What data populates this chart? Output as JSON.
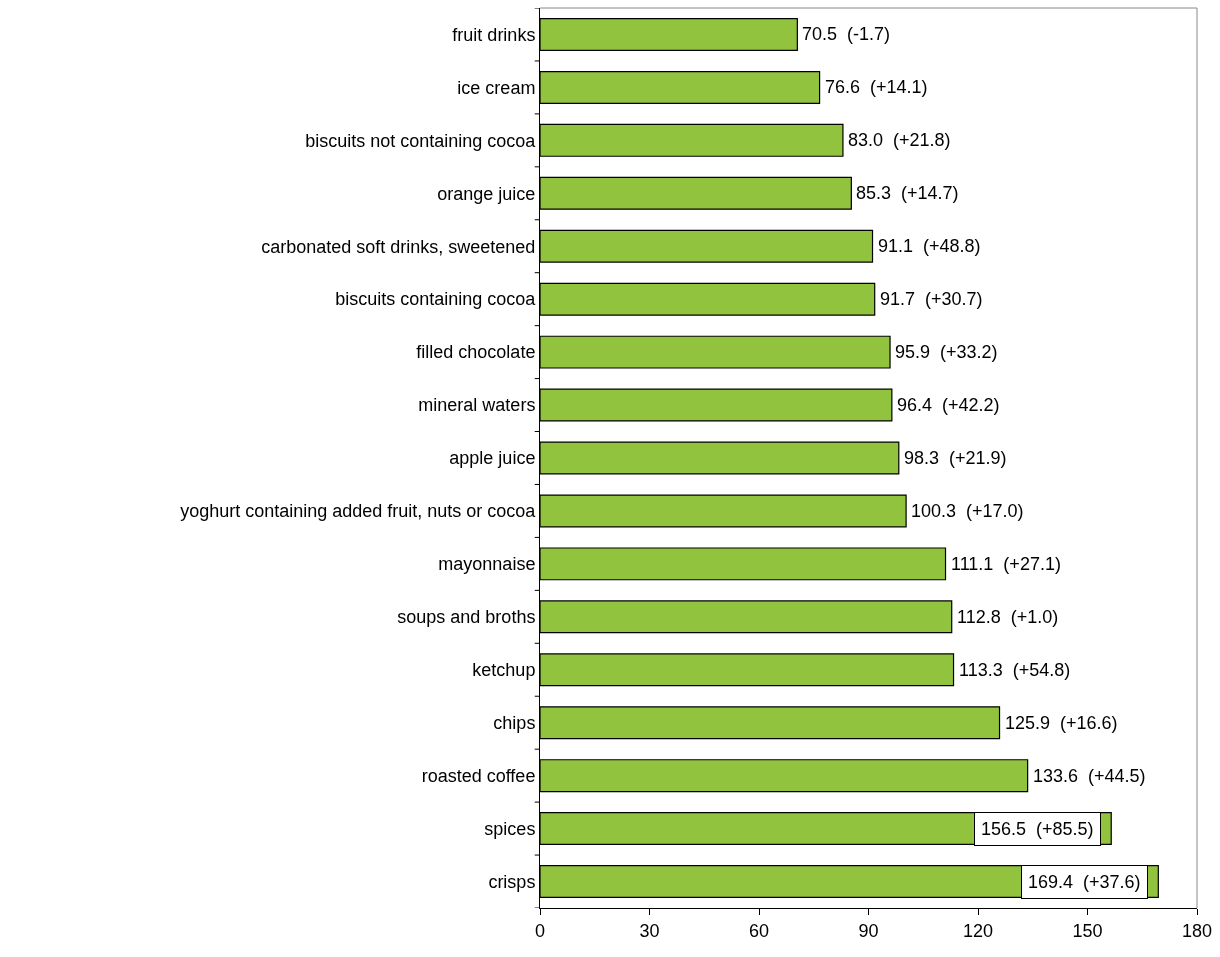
{
  "chart_data": {
    "type": "bar",
    "orientation": "horizontal",
    "categories": [
      "fruit drinks",
      "ice cream",
      "biscuits not containing cocoa",
      "orange juice",
      "carbonated soft drinks, sweetened",
      "biscuits containing cocoa",
      "filled chocolate",
      "mineral waters",
      "apple juice",
      "yoghurt containing added fruit, nuts or cocoa",
      "mayonnaise",
      "soups and broths",
      "ketchup",
      "chips",
      "roasted coffee",
      "spices",
      "crisps"
    ],
    "values": [
      70.5,
      76.6,
      83.0,
      85.3,
      91.1,
      91.7,
      95.9,
      96.4,
      98.3,
      100.3,
      111.1,
      112.8,
      113.3,
      125.9,
      133.6,
      156.5,
      169.4
    ],
    "value_labels": [
      "70.5  (-1.7)",
      "76.6  (+14.1)",
      "83.0  (+21.8)",
      "85.3  (+14.7)",
      "91.1  (+48.8)",
      "91.7  (+30.7)",
      "95.9  (+33.2)",
      "96.4  (+42.2)",
      "98.3  (+21.9)",
      "100.3  (+17.0)",
      "111.1  (+27.1)",
      "112.8  (+1.0)",
      "113.3  (+54.8)",
      "125.9  (+16.6)",
      "133.6  (+44.5)",
      "156.5  (+85.5)",
      "169.4  (+37.6)"
    ],
    "color": "#92c33e",
    "xlim": [
      0,
      180
    ],
    "xticks": [
      0,
      30,
      60,
      90,
      120,
      150,
      180
    ]
  }
}
